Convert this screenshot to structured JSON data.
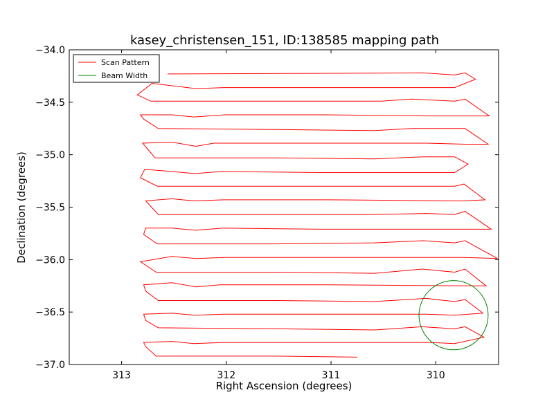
{
  "chart_data": {
    "type": "line",
    "title": "kasey_christensen_151, ID:138585 mapping path",
    "xlabel": "Right Ascension (degrees)",
    "ylabel": "Declination (degrees)",
    "xlim": [
      313.5,
      309.4
    ],
    "ylim": [
      -37.0,
      -34.0
    ],
    "x_inverted": true,
    "xticks": [
      313,
      312,
      311,
      310
    ],
    "xtick_labels": [
      "313",
      "312",
      "311",
      "310"
    ],
    "yticks": [
      -34.0,
      -34.5,
      -35.0,
      -35.5,
      -36.0,
      -36.5,
      -37.0
    ],
    "ytick_labels": [
      "−34.0",
      "−34.5",
      "−35.0",
      "−35.5",
      "−36.0",
      "−36.5",
      "−37.0"
    ],
    "grid": false,
    "legend": {
      "placement": "top-left",
      "entries": [
        "Scan Pattern",
        "Beam Width"
      ]
    },
    "colors": {
      "scan": "#ff0000",
      "beam": "#008000"
    },
    "series": [
      {
        "name": "Scan Pattern",
        "kind": "line",
        "points": [
          [
            312.56,
            -34.23
          ],
          [
            310.12,
            -34.22
          ],
          [
            309.82,
            -34.24
          ],
          [
            309.72,
            -34.22
          ],
          [
            309.62,
            -34.28
          ],
          [
            309.82,
            -34.36
          ],
          [
            310.12,
            -34.36
          ],
          [
            311.52,
            -34.36
          ],
          [
            312.02,
            -34.36
          ],
          [
            312.29,
            -34.37
          ],
          [
            312.71,
            -34.32
          ],
          [
            312.85,
            -34.43
          ],
          [
            312.72,
            -34.49
          ],
          [
            310.52,
            -34.49
          ],
          [
            310.23,
            -34.47
          ],
          [
            309.82,
            -34.49
          ],
          [
            309.72,
            -34.47
          ],
          [
            309.49,
            -34.63
          ],
          [
            309.72,
            -34.63
          ],
          [
            310.08,
            -34.63
          ],
          [
            311.06,
            -34.62
          ],
          [
            312.01,
            -34.62
          ],
          [
            312.31,
            -34.64
          ],
          [
            312.52,
            -34.62
          ],
          [
            312.82,
            -34.62
          ],
          [
            312.79,
            -34.66
          ],
          [
            312.65,
            -34.75
          ],
          [
            311.52,
            -34.76
          ],
          [
            310.58,
            -34.77
          ],
          [
            310.23,
            -34.75
          ],
          [
            309.82,
            -34.75
          ],
          [
            309.72,
            -34.75
          ],
          [
            309.5,
            -34.9
          ],
          [
            309.72,
            -34.9
          ],
          [
            310.09,
            -34.89
          ],
          [
            311.02,
            -34.89
          ],
          [
            312.12,
            -34.89
          ],
          [
            312.29,
            -34.92
          ],
          [
            312.52,
            -34.88
          ],
          [
            312.8,
            -34.89
          ],
          [
            312.68,
            -35.03
          ],
          [
            311.52,
            -35.03
          ],
          [
            310.59,
            -35.04
          ],
          [
            310.12,
            -35.02
          ],
          [
            309.82,
            -35.02
          ],
          [
            309.69,
            -35.09
          ],
          [
            309.82,
            -35.17
          ],
          [
            311.1,
            -35.17
          ],
          [
            312.05,
            -35.16
          ],
          [
            312.3,
            -35.18
          ],
          [
            312.52,
            -35.16
          ],
          [
            312.78,
            -35.14
          ],
          [
            312.82,
            -35.22
          ],
          [
            312.66,
            -35.3
          ],
          [
            311.52,
            -35.3
          ],
          [
            310.58,
            -35.3
          ],
          [
            310.13,
            -35.3
          ],
          [
            309.82,
            -35.3
          ],
          [
            309.73,
            -35.28
          ],
          [
            309.53,
            -35.43
          ],
          [
            309.72,
            -35.44
          ],
          [
            309.82,
            -35.44
          ],
          [
            311.02,
            -35.43
          ],
          [
            312.02,
            -35.43
          ],
          [
            312.31,
            -35.44
          ],
          [
            312.52,
            -35.42
          ],
          [
            312.77,
            -35.44
          ],
          [
            312.65,
            -35.57
          ],
          [
            311.52,
            -35.57
          ],
          [
            310.58,
            -35.57
          ],
          [
            310.09,
            -35.56
          ],
          [
            309.82,
            -35.57
          ],
          [
            309.72,
            -35.54
          ],
          [
            309.47,
            -35.71
          ],
          [
            309.72,
            -35.71
          ],
          [
            311.1,
            -35.71
          ],
          [
            312.03,
            -35.7
          ],
          [
            312.29,
            -35.72
          ],
          [
            312.52,
            -35.7
          ],
          [
            312.77,
            -35.7
          ],
          [
            312.79,
            -35.76
          ],
          [
            312.66,
            -35.85
          ],
          [
            311.52,
            -35.85
          ],
          [
            310.59,
            -35.84
          ],
          [
            310.12,
            -35.82
          ],
          [
            309.82,
            -35.84
          ],
          [
            309.72,
            -35.82
          ],
          [
            309.41,
            -35.99
          ],
          [
            309.72,
            -35.98
          ],
          [
            311.1,
            -35.98
          ],
          [
            312.02,
            -35.98
          ],
          [
            312.29,
            -35.99
          ],
          [
            312.52,
            -35.97
          ],
          [
            312.82,
            -36.02
          ],
          [
            312.67,
            -36.12
          ],
          [
            311.52,
            -36.12
          ],
          [
            310.58,
            -36.13
          ],
          [
            310.13,
            -36.09
          ],
          [
            309.82,
            -36.12
          ],
          [
            309.72,
            -36.09
          ],
          [
            309.52,
            -36.25
          ],
          [
            309.72,
            -36.25
          ],
          [
            311.04,
            -36.24
          ],
          [
            312.06,
            -36.24
          ],
          [
            312.29,
            -36.26
          ],
          [
            312.52,
            -36.22
          ],
          [
            312.79,
            -36.24
          ],
          [
            312.77,
            -36.3
          ],
          [
            312.65,
            -36.39
          ],
          [
            311.52,
            -36.39
          ],
          [
            310.59,
            -36.4
          ],
          [
            310.09,
            -36.37
          ],
          [
            309.82,
            -36.4
          ],
          [
            309.72,
            -36.38
          ],
          [
            309.55,
            -36.51
          ],
          [
            309.82,
            -36.53
          ],
          [
            310.09,
            -36.52
          ],
          [
            311.1,
            -36.52
          ],
          [
            312.02,
            -36.52
          ],
          [
            312.3,
            -36.53
          ],
          [
            312.52,
            -36.51
          ],
          [
            312.79,
            -36.52
          ],
          [
            312.77,
            -36.58
          ],
          [
            312.65,
            -36.65
          ],
          [
            311.52,
            -36.66
          ],
          [
            310.58,
            -36.67
          ],
          [
            310.13,
            -36.64
          ],
          [
            309.82,
            -36.66
          ],
          [
            309.72,
            -36.64
          ],
          [
            309.54,
            -36.74
          ],
          [
            309.82,
            -36.8
          ],
          [
            310.06,
            -36.79
          ],
          [
            311.1,
            -36.79
          ],
          [
            312.02,
            -36.79
          ],
          [
            312.31,
            -36.8
          ],
          [
            312.52,
            -36.78
          ],
          [
            312.79,
            -36.79
          ],
          [
            312.77,
            -36.83
          ],
          [
            312.67,
            -36.92
          ],
          [
            311.52,
            -36.92
          ],
          [
            310.75,
            -36.93
          ]
        ]
      },
      {
        "name": "Beam Width",
        "kind": "circle",
        "center": [
          309.83,
          -36.53
        ],
        "radius": 0.33
      }
    ]
  }
}
